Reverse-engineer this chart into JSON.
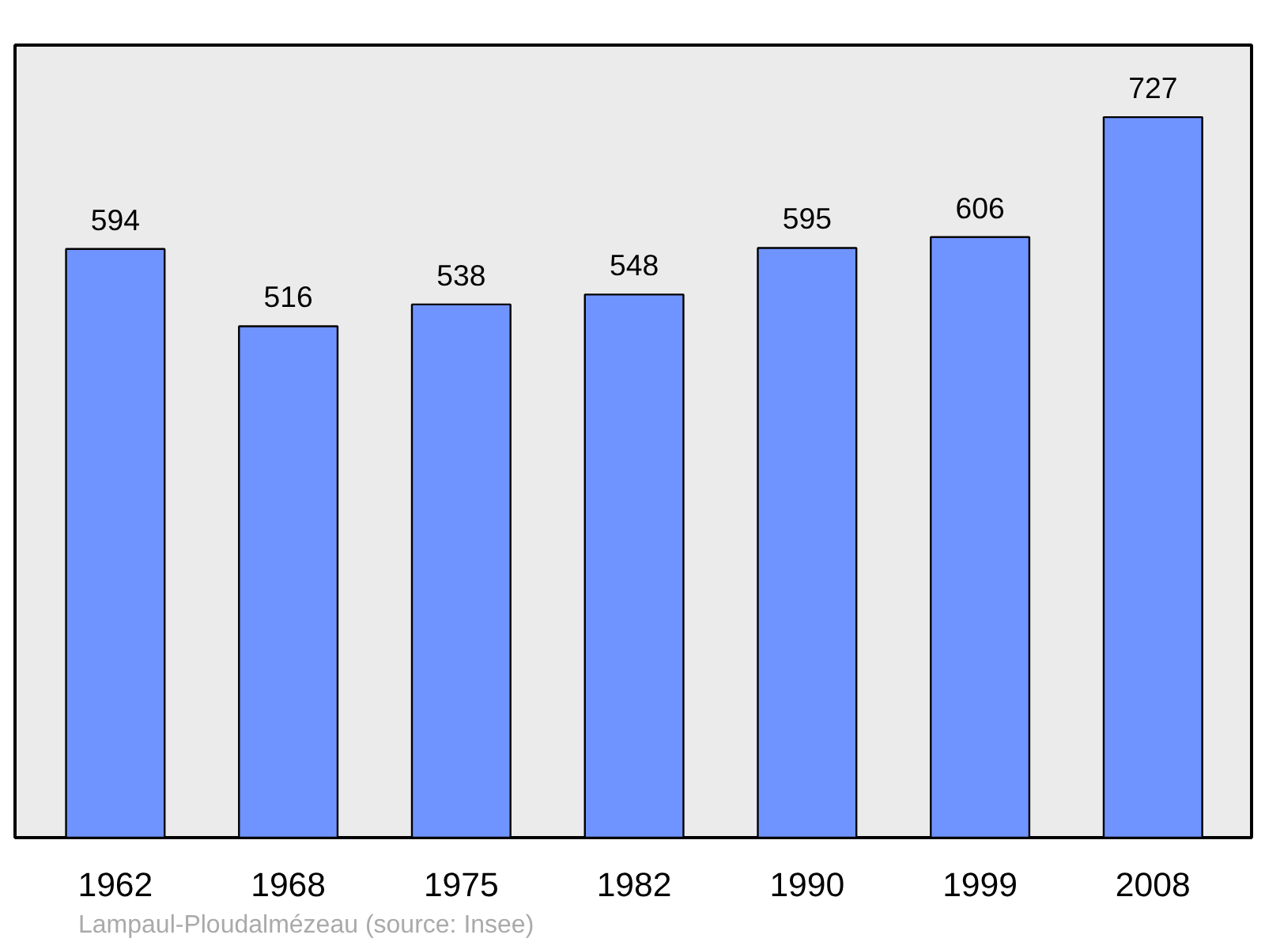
{
  "chart_data": {
    "type": "bar",
    "categories": [
      "1962",
      "1968",
      "1975",
      "1982",
      "1990",
      "1999",
      "2008"
    ],
    "values": [
      594,
      516,
      538,
      548,
      595,
      606,
      727
    ],
    "color": "#7094ff",
    "data_labels": true,
    "grid": false,
    "tick_labels": "x",
    "annotations": [
      "Lampaul-Ploudalmézeau    (source: Insee)"
    ]
  }
}
